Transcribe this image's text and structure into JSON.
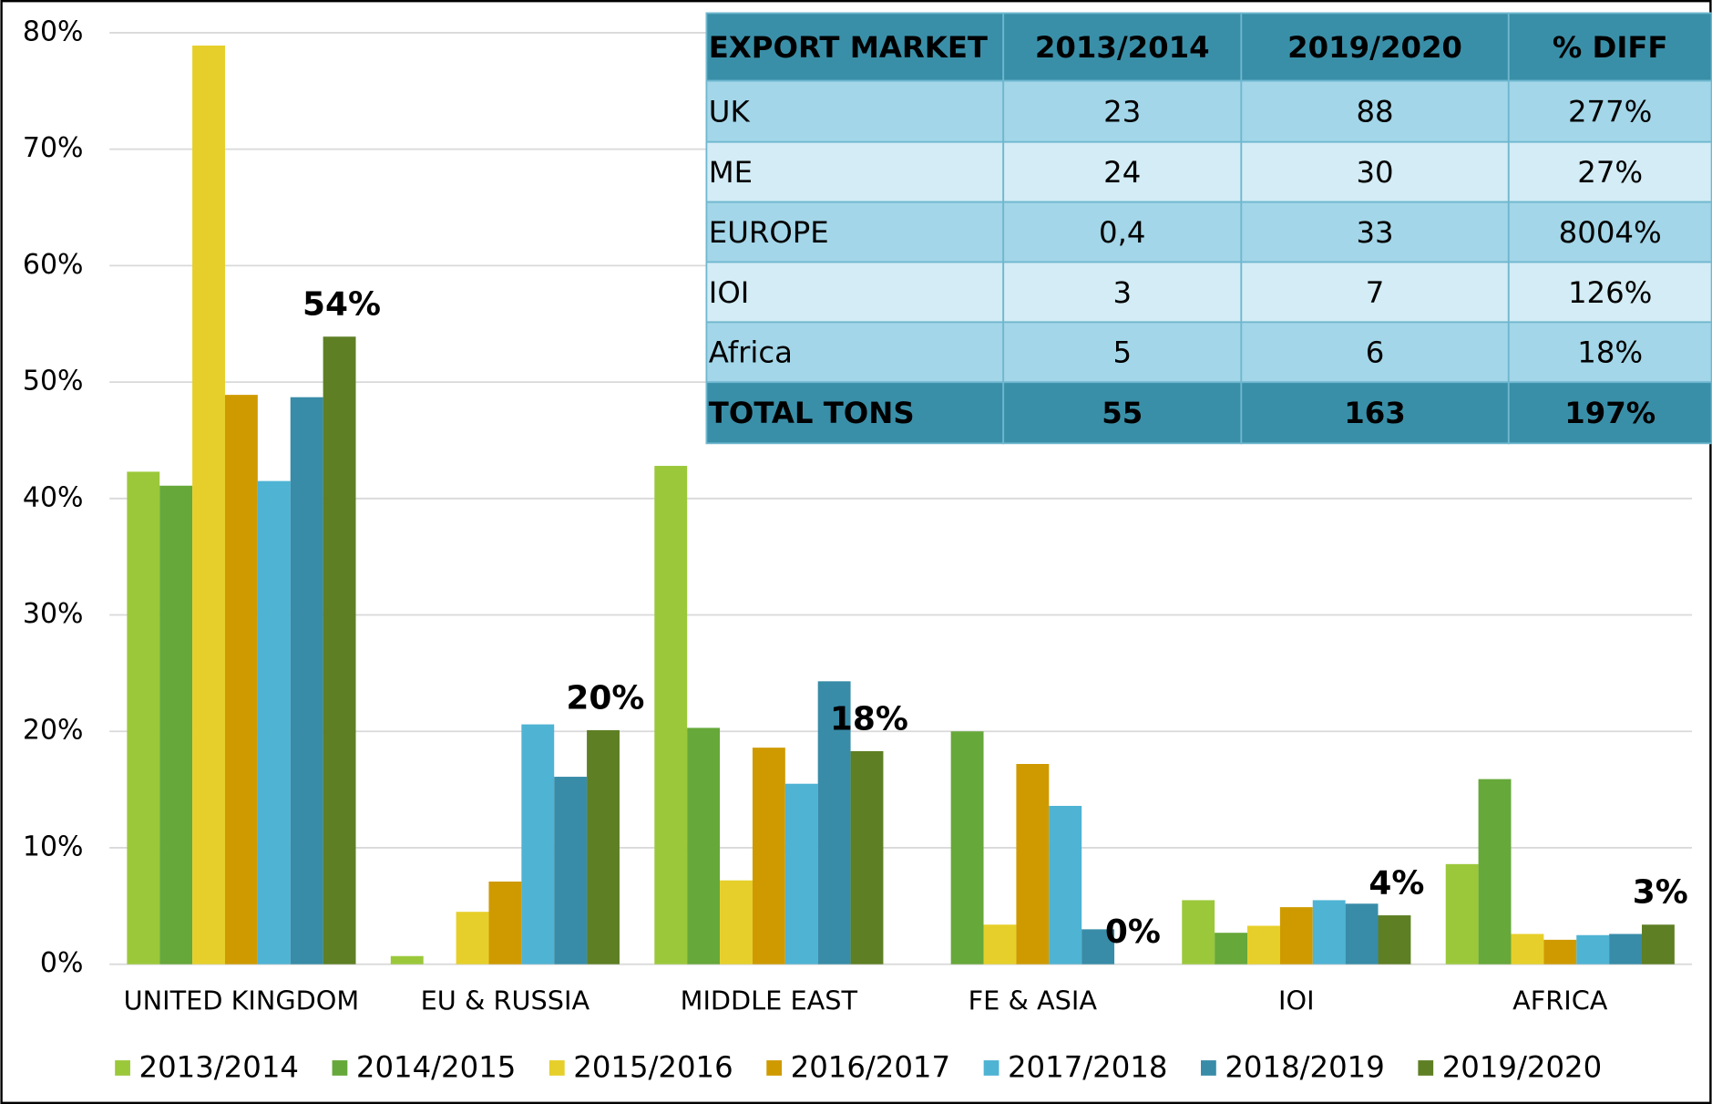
{
  "chart_data": {
    "type": "bar",
    "categories": [
      "UNITED KINGDOM",
      "EU & RUSSIA",
      "MIDDLE EAST",
      "FE & ASIA",
      "IOI",
      "AFRICA"
    ],
    "series": [
      {
        "name": "2013/2014",
        "color": "#9BC83A",
        "values": [
          42.3,
          0.7,
          42.8,
          0,
          5.5,
          8.6
        ]
      },
      {
        "name": "2014/2015",
        "color": "#66A83A",
        "values": [
          41.1,
          0,
          20.3,
          20.0,
          2.7,
          15.9
        ]
      },
      {
        "name": "2015/2016",
        "color": "#E6CF2A",
        "values": [
          78.9,
          4.5,
          7.2,
          3.4,
          3.3,
          2.6
        ]
      },
      {
        "name": "2016/2017",
        "color": "#CF9A00",
        "values": [
          48.9,
          7.1,
          18.6,
          17.2,
          4.9,
          2.1
        ]
      },
      {
        "name": "2017/2018",
        "color": "#4FB3D3",
        "values": [
          41.5,
          20.6,
          15.5,
          13.6,
          5.5,
          2.5
        ]
      },
      {
        "name": "2018/2019",
        "color": "#388CA8",
        "values": [
          48.7,
          16.1,
          24.3,
          3.0,
          5.2,
          2.6
        ]
      },
      {
        "name": "2019/2020",
        "color": "#5E7F24",
        "values": [
          53.9,
          20.1,
          18.3,
          0,
          4.2,
          3.4
        ],
        "value_labels": [
          "54%",
          "20%",
          "18%",
          "0%",
          "4%",
          "3%"
        ]
      }
    ],
    "ylim": [
      0,
      80
    ],
    "yticks": [
      {
        "value": 0,
        "label": "0%"
      },
      {
        "value": 10,
        "label": "10%"
      },
      {
        "value": 20,
        "label": "20%"
      },
      {
        "value": 30,
        "label": "30%"
      },
      {
        "value": 40,
        "label": "40%"
      },
      {
        "value": 50,
        "label": "50%"
      },
      {
        "value": 60,
        "label": "60%"
      },
      {
        "value": 70,
        "label": "70%"
      },
      {
        "value": 80,
        "label": "80%"
      }
    ],
    "grid": true,
    "legend": "bottom"
  },
  "table": {
    "header": [
      "EXPORT MARKET",
      "2013/2014",
      "2019/2020",
      "% DIFF"
    ],
    "rows": [
      [
        "UK",
        "23",
        "88",
        "277%"
      ],
      [
        "ME",
        "24",
        "30",
        "27%"
      ],
      [
        "EUROPE",
        "0,4",
        "33",
        "8004%"
      ],
      [
        "IOI",
        "3",
        "7",
        "126%"
      ],
      [
        "Africa",
        "5",
        "6",
        "18%"
      ],
      [
        "TOTAL TONS",
        "55",
        "163",
        "197%"
      ]
    ]
  }
}
